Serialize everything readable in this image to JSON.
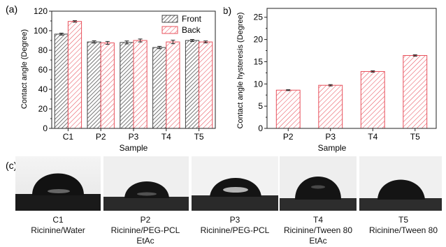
{
  "panel_labels": {
    "a": "(a)",
    "b": "(b)",
    "c": "(c)"
  },
  "colors": {
    "front": "#555555",
    "back": "#e8505b",
    "axis": "#222222"
  },
  "chart_data": [
    {
      "type": "bar",
      "categories": [
        "C1",
        "P2",
        "P3",
        "T4",
        "T5"
      ],
      "series": [
        {
          "name": "Front",
          "values": [
            96.5,
            88.5,
            88.0,
            82.8,
            90.0
          ],
          "errors": [
            1.0,
            1.2,
            1.5,
            1.2,
            1.0
          ]
        },
        {
          "name": "Back",
          "values": [
            109.5,
            87.5,
            90.0,
            88.5,
            88.5
          ],
          "errors": [
            0.8,
            1.5,
            1.5,
            1.8,
            1.0
          ]
        }
      ],
      "xlabel": "Sample",
      "ylabel": "Contact angle (Degree)",
      "ylim": [
        0,
        120
      ],
      "yticks": [
        0,
        20,
        40,
        60,
        80,
        100,
        120
      ],
      "legend": "top-right"
    },
    {
      "type": "bar",
      "categories": [
        "P2",
        "P3",
        "T4",
        "T5"
      ],
      "series": [
        {
          "values": [
            8.6,
            9.7,
            12.8,
            16.4
          ],
          "errors": [
            0.1,
            0.15,
            0.15,
            0.15
          ]
        }
      ],
      "xlabel": "Sample",
      "ylabel": "Contact angle hysteresis (Degree)",
      "ylim": [
        0,
        27
      ],
      "yticks": [
        0,
        5,
        10,
        15,
        20,
        25
      ]
    }
  ],
  "droplets": [
    {
      "code": "C1",
      "line1": "Ricinine/Water",
      "line2": ""
    },
    {
      "code": "P2",
      "line1": "Ricinine/PEG-PCL",
      "line2": "EtAc"
    },
    {
      "code": "P3",
      "line1": "Ricinine/PEG-PCL",
      "line2": ""
    },
    {
      "code": "T4",
      "line1": "Ricinine/Tween 80",
      "line2": "EtAc"
    },
    {
      "code": "T5",
      "line1": "Ricinine/Tween 80",
      "line2": ""
    }
  ]
}
